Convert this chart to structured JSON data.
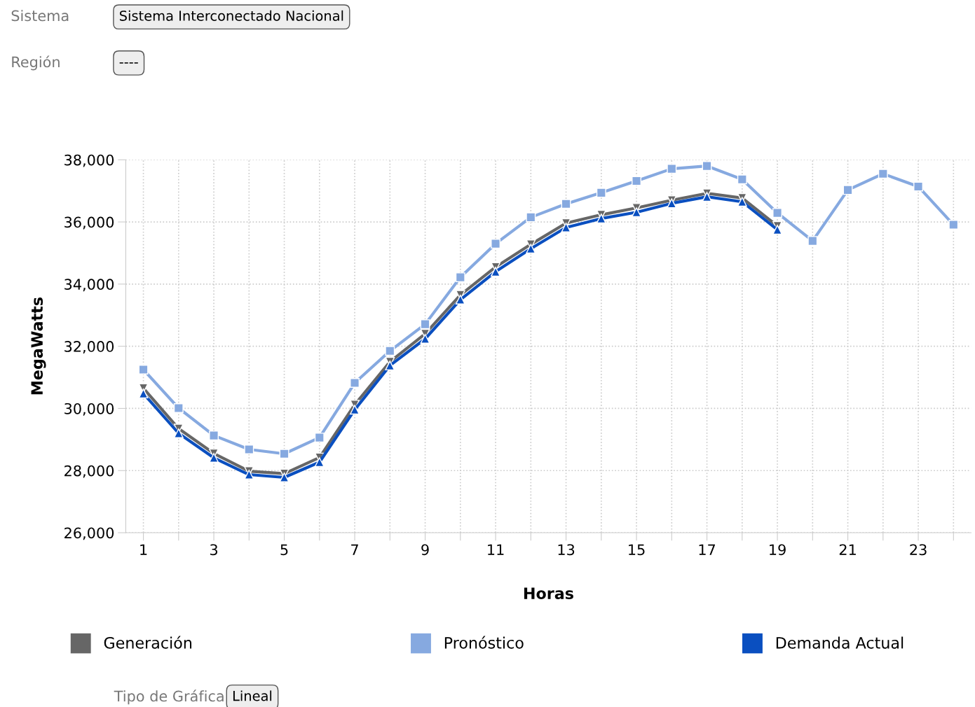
{
  "chart_data": {
    "type": "line",
    "xlabel": "Horas",
    "ylabel": "MegaWatts",
    "annotations": [
      "Sistema",
      "Sistema Interconectado Nacional",
      "Región",
      "----",
      "Tipo de Gráfica",
      "Lineal"
    ],
    "x": [
      1,
      2,
      3,
      4,
      5,
      6,
      7,
      8,
      9,
      10,
      11,
      12,
      13,
      14,
      15,
      16,
      17,
      18,
      19,
      20,
      21,
      22,
      23,
      24
    ],
    "series": [
      {
        "name": "Generación",
        "color": "#666666",
        "marker": "triangle_down",
        "x": [
          1,
          2,
          3,
          4,
          5,
          6,
          7,
          8,
          9,
          10,
          11,
          12,
          13,
          14,
          15,
          16,
          17,
          18,
          19
        ],
        "values": [
          30650,
          29350,
          28550,
          27980,
          27900,
          28420,
          30120,
          31500,
          32400,
          33650,
          34550,
          35280,
          35960,
          36230,
          36450,
          36700,
          36920,
          36770,
          35870
        ]
      },
      {
        "name": "Pronóstico",
        "color": "#86a9e0",
        "marker": "square",
        "values": [
          31250,
          30010,
          29130,
          28680,
          28540,
          29060,
          30820,
          31850,
          32710,
          34220,
          35300,
          36150,
          36580,
          36940,
          37320,
          37710,
          37800,
          37370,
          36290,
          35390,
          37030,
          37550,
          37140,
          35910
        ]
      },
      {
        "name": "Demanda Actual",
        "color": "#0a4fc0",
        "marker": "triangle",
        "x": [
          1,
          2,
          3,
          4,
          5,
          6,
          7,
          8,
          9,
          10,
          11,
          12,
          13,
          14,
          15,
          16,
          17,
          18,
          19
        ],
        "values": [
          30480,
          29200,
          28410,
          27870,
          27780,
          28270,
          29960,
          31380,
          32240,
          33500,
          34400,
          35140,
          35820,
          36110,
          36310,
          36600,
          36810,
          36650,
          35750
        ]
      }
    ],
    "xlim": [
      0.5,
      24.5
    ],
    "xticks": [
      1,
      {
        "value": 2,
        "label": null
      },
      3,
      {
        "value": 4,
        "label": null
      },
      5,
      {
        "value": 6,
        "label": null
      },
      7,
      {
        "value": 8,
        "label": null
      },
      9,
      {
        "value": 10,
        "label": null
      },
      11,
      {
        "value": 12,
        "label": null
      },
      13,
      {
        "value": 14,
        "label": null
      },
      15,
      {
        "value": 16,
        "label": null
      },
      17,
      {
        "value": 18,
        "label": null
      },
      19,
      {
        "value": 20,
        "label": null
      },
      21,
      {
        "value": 22,
        "label": null
      },
      23,
      {
        "value": 24,
        "label": null
      }
    ],
    "ylim": [
      26000,
      38000
    ],
    "yticks": [
      {
        "value": 26000,
        "label": "26,000"
      },
      {
        "value": 28000,
        "label": "28,000"
      },
      {
        "value": 30000,
        "label": "30,000"
      },
      {
        "value": 32000,
        "label": "32,000"
      },
      {
        "value": 34000,
        "label": "34,000"
      },
      {
        "value": 36000,
        "label": "36,000"
      },
      {
        "value": 38000,
        "label": "38,000"
      }
    ],
    "grid": true,
    "legend": "bottom",
    "line_style": "solid"
  }
}
